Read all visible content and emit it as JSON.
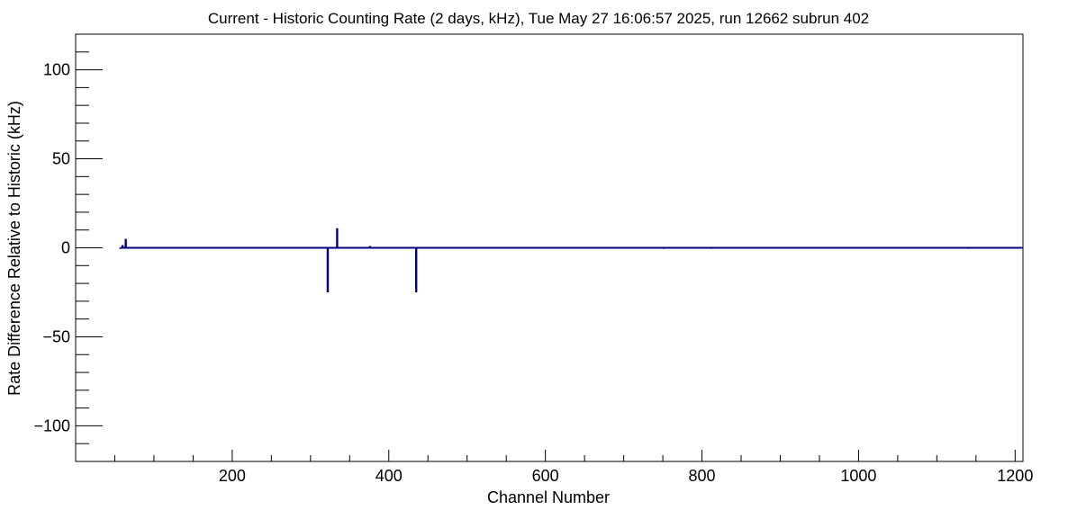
{
  "chart_data": {
    "type": "bar",
    "title": "Current - Historic Counting Rate (2 days, kHz), Tue May 27 16:06:57 2025, run 12662 subrun 402",
    "xlabel": "Channel Number",
    "ylabel": "Rate Difference Relative to Historic (kHz)",
    "xlim": [
      0,
      1210
    ],
    "ylim": [
      -120,
      120
    ],
    "x_major_ticks": [
      200,
      400,
      600,
      800,
      1000,
      1200
    ],
    "x_minor_step": 50,
    "y_major_ticks": [
      -100,
      -50,
      0,
      50,
      100
    ],
    "y_minor_step": 10,
    "grid": false,
    "legend": "none",
    "baseline": 0,
    "baseline_range": [
      57,
      1210
    ],
    "series_color": "#000080",
    "series": [
      {
        "x": [
          57,
          60,
          64,
          100,
          112,
          150,
          187,
          236,
          322,
          334,
          376,
          397,
          435,
          545,
          693,
          751,
          812,
          818,
          975,
          1140
        ],
        "y": [
          -0.6,
          1.5,
          5,
          -0.5,
          -0.5,
          -0.5,
          -0.4,
          0.4,
          -25,
          11,
          1,
          -0.5,
          -25,
          -0.5,
          0.5,
          -0.6,
          -0.6,
          -0.5,
          0.5,
          -0.6
        ]
      }
    ]
  }
}
